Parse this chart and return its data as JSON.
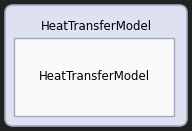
{
  "outer_label": "HeatTransferModel",
  "inner_label": "HeatTransferModel",
  "outer_bg": "#dde1f0",
  "inner_bg": "#fafafa",
  "outer_border": "#a0a8c0",
  "inner_border": "#a0a8c0",
  "fig_bg": "#222222",
  "outer_text_color": "#000000",
  "inner_text_color": "#000000",
  "fig_width": 1.92,
  "fig_height": 1.31,
  "dpi": 100
}
